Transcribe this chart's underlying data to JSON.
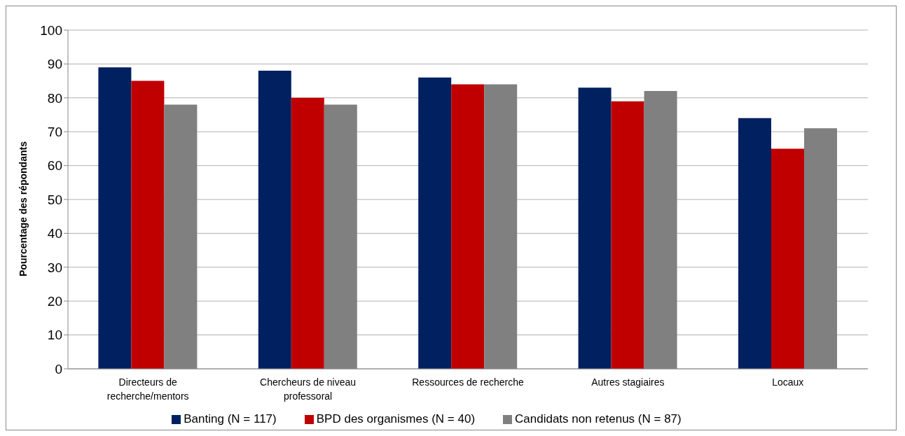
{
  "chart_data": {
    "type": "bar",
    "ylabel": "Pourcentage des répondants",
    "categories": [
      "Directeurs de recherche/mentors",
      "Chercheurs de niveau professoral",
      "Ressources de recherche",
      "Autres stagiaires",
      "Locaux"
    ],
    "series": [
      {
        "name": "Banting (N = 117)",
        "color": "#002060",
        "values": [
          89,
          88,
          86,
          83,
          74
        ]
      },
      {
        "name": "BPD des organismes  (N = 40)",
        "color": "#c00000",
        "values": [
          85,
          80,
          84,
          79,
          65
        ]
      },
      {
        "name": "Candidats non retenus (N = 87)",
        "color": "#808080",
        "values": [
          78,
          78,
          84,
          82,
          71
        ]
      }
    ],
    "ylim": [
      0,
      100
    ],
    "yticks": [
      0,
      10,
      20,
      30,
      40,
      50,
      60,
      70,
      80,
      90,
      100
    ],
    "grid": "y",
    "legend": "bottom"
  }
}
